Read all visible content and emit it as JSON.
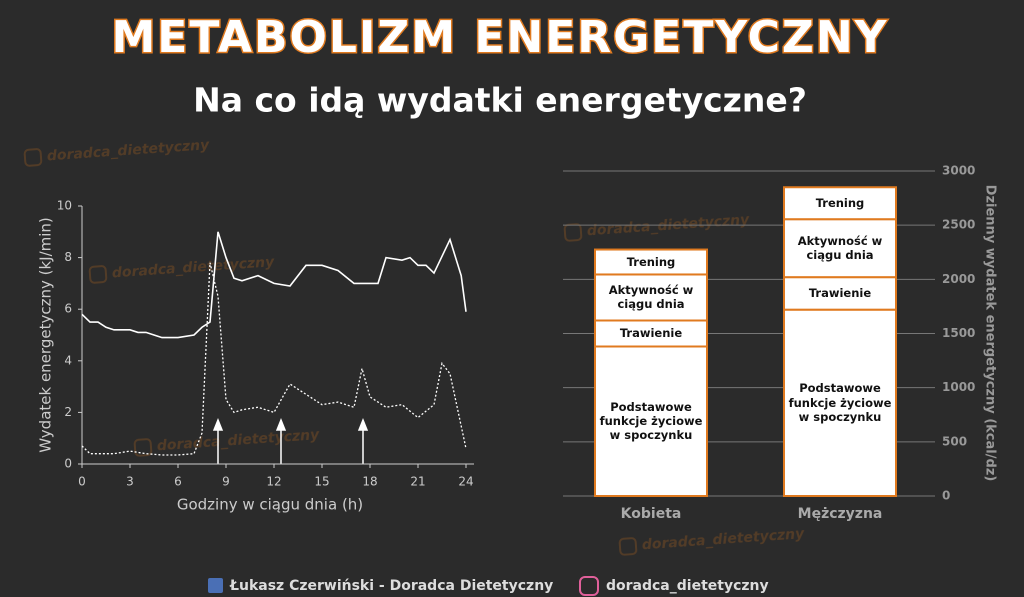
{
  "header": {
    "title": "METABOLIZM ENERGETYCZNY",
    "subtitle": "Na co idą wydatki energetyczne?"
  },
  "chart_data": [
    {
      "type": "line",
      "x_label": "Godziny w ciągu dnia (h)",
      "y_label": "Wydatek energetyczny (kJ/min)",
      "xlim": [
        0,
        24
      ],
      "xticks": [
        0,
        3,
        6,
        9,
        12,
        15,
        18,
        21,
        24
      ],
      "ylim": [
        0,
        10
      ],
      "yticks": [
        0,
        2,
        4,
        6,
        8,
        10
      ],
      "series": [
        {
          "color": "#ffffff",
          "line_style": "solid",
          "x": [
            0,
            0.5,
            1,
            1.5,
            2,
            3,
            3.5,
            4,
            4.5,
            5,
            6,
            7,
            7.5,
            8,
            8.5,
            9,
            9.5,
            10,
            11,
            12,
            13,
            14,
            15,
            16,
            17,
            18,
            18.5,
            19,
            20,
            20.5,
            21,
            21.5,
            22,
            23,
            23.7,
            24
          ],
          "values": [
            5.8,
            5.5,
            5.5,
            5.3,
            5.2,
            5.2,
            5.1,
            5.1,
            5.0,
            4.9,
            4.9,
            5.0,
            5.3,
            5.5,
            9.0,
            8.0,
            7.2,
            7.1,
            7.3,
            7.0,
            6.9,
            7.7,
            7.7,
            7.5,
            7.0,
            7.0,
            7.0,
            8.0,
            7.9,
            8.0,
            7.7,
            7.7,
            7.4,
            8.7,
            7.3,
            5.9
          ]
        },
        {
          "color": "#ffffff",
          "line_style": "dotted",
          "x": [
            0,
            0.5,
            1,
            2,
            3,
            4,
            5,
            6,
            7,
            7.5,
            8,
            8.5,
            9,
            9.5,
            10,
            11,
            12,
            13,
            14,
            15,
            16,
            17,
            17.5,
            18,
            19,
            20,
            21,
            22,
            22.5,
            23,
            24
          ],
          "values": [
            0.7,
            0.4,
            0.4,
            0.4,
            0.5,
            0.4,
            0.35,
            0.35,
            0.4,
            1.2,
            7.8,
            6.5,
            2.5,
            2.0,
            2.1,
            2.2,
            2.0,
            3.1,
            2.7,
            2.3,
            2.4,
            2.2,
            3.7,
            2.6,
            2.2,
            2.3,
            1.8,
            2.3,
            3.9,
            3.5,
            0.6
          ]
        }
      ]
    },
    {
      "type": "stacked_bar",
      "y_label": "Dzienny wydatek energetyczny (kcal/dz)",
      "categories": [
        "Kobieta",
        "Mężczyzna"
      ],
      "ylim": [
        0,
        3000
      ],
      "yticks": [
        0,
        500,
        1000,
        1500,
        2000,
        2500,
        3000
      ],
      "y_axis_side": "right",
      "grid": true,
      "edge_color": "#e07a1f",
      "series": [
        {
          "name": "Podstawowe funkcje życiowe w spoczynku",
          "color": "#ffffff",
          "values": [
            1380,
            1720
          ]
        },
        {
          "name": "Trawienie",
          "color": "#ffffff",
          "values": [
            240,
            300
          ]
        },
        {
          "name": "Aktywność w ciągu dnia",
          "color": "#ffffff",
          "values": [
            425,
            535
          ]
        },
        {
          "name": "Trening",
          "color": "#ffffff",
          "values": [
            230,
            295
          ]
        }
      ]
    }
  ],
  "footer": {
    "author": "Łukasz Czerwiński - Doradca Dietetyczny",
    "instagram": "doradca_dietetyczny"
  },
  "watermark": "doradca_dietetyczny"
}
